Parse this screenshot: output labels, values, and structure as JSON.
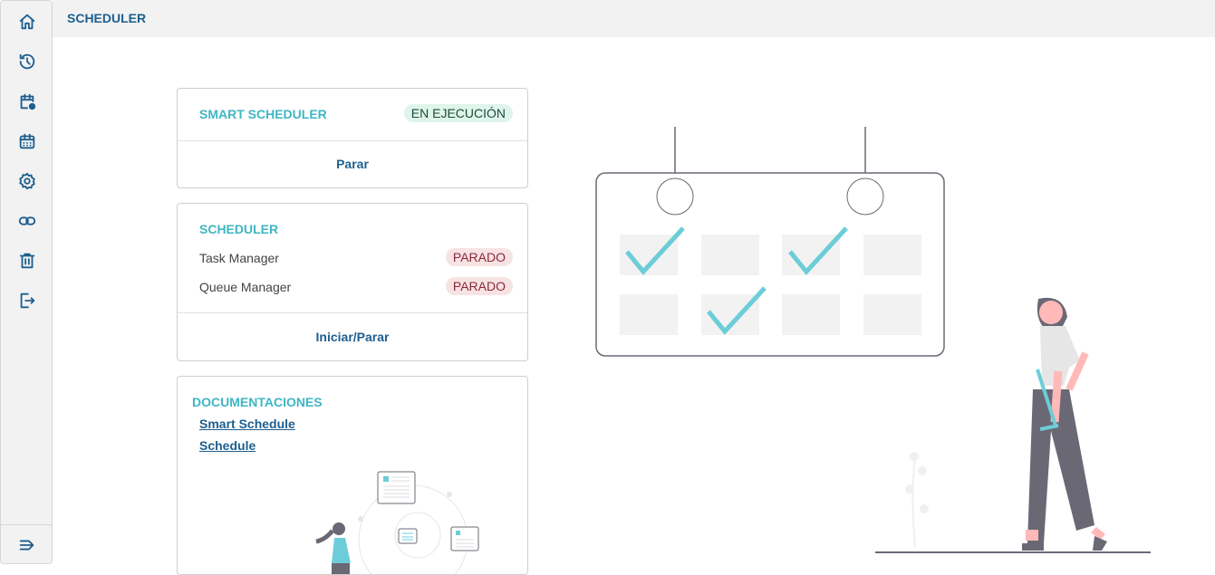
{
  "header": {
    "title": "SCHEDULER"
  },
  "sidebar": {
    "items": [
      {
        "icon": "home-icon"
      },
      {
        "icon": "history-icon"
      },
      {
        "icon": "calendar-settings-icon"
      },
      {
        "icon": "calendar-icon"
      },
      {
        "icon": "gear-icon"
      },
      {
        "icon": "link-icon"
      },
      {
        "icon": "trash-icon"
      },
      {
        "icon": "logout-icon"
      }
    ],
    "expand_icon": "expand-icon"
  },
  "smart_scheduler": {
    "title": "SMART SCHEDULER",
    "status": "EN EJECUCIÓN",
    "action": "Parar"
  },
  "scheduler": {
    "title": "SCHEDULER",
    "rows": [
      {
        "label": "Task Manager",
        "status": "PARADO"
      },
      {
        "label": "Queue Manager",
        "status": "PARADO"
      }
    ],
    "action": "Iniciar/Parar"
  },
  "docs": {
    "title": "DOCUMENTACIONES",
    "links": [
      "Smart Schedule",
      "Schedule"
    ]
  },
  "colors": {
    "primary": "#1d5f8f",
    "accent": "#3fb6c4",
    "running_bg": "#dff5ec",
    "stopped_bg": "#f7e3e3"
  }
}
